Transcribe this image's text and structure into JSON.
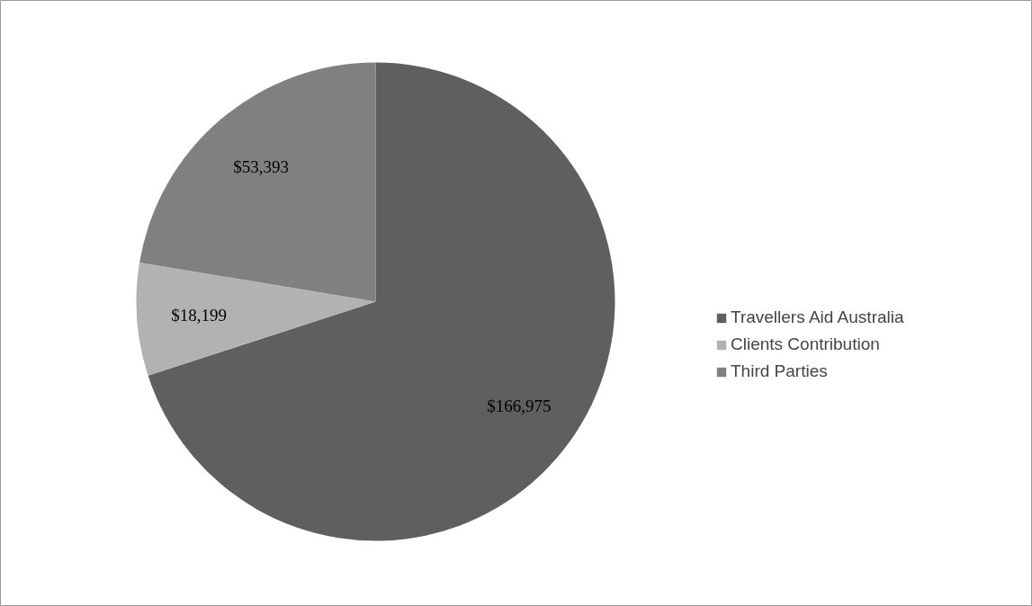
{
  "chart_data": {
    "type": "pie",
    "categories": [
      "Travellers Aid Australia",
      "Clients Contribution",
      "Third Parties"
    ],
    "values": [
      166975,
      18199,
      53393
    ],
    "value_labels": [
      "$166,975",
      "$18,199",
      "$53,393"
    ],
    "colors": [
      "#5f5f5f",
      "#b2b2b2",
      "#808080"
    ],
    "legend": "right"
  }
}
